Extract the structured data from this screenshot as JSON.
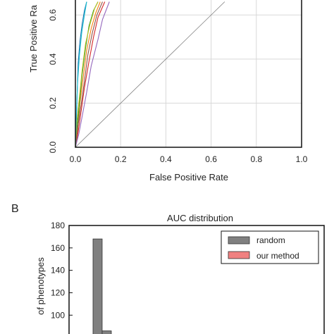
{
  "chart_data": [
    {
      "type": "line",
      "panel_label": "",
      "xlabel": "False Positive Rate",
      "ylabel": "True Positive Ra",
      "xlim": [
        0.0,
        1.0
      ],
      "ylim": [
        0.0,
        0.66
      ],
      "x_ticks": [
        "0.0",
        "0.2",
        "0.4",
        "0.6",
        "0.8",
        "1.0"
      ],
      "y_ticks": [
        "0.0",
        "0.2",
        "0.4",
        "0.6"
      ],
      "grid": true,
      "series": [
        {
          "color": "#1f77b4",
          "points": [
            [
              0,
              0
            ],
            [
              0.004,
              0.12
            ],
            [
              0.008,
              0.25
            ],
            [
              0.012,
              0.38
            ],
            [
              0.02,
              0.48
            ],
            [
              0.03,
              0.56
            ],
            [
              0.04,
              0.62
            ],
            [
              0.05,
              0.66
            ]
          ]
        },
        {
          "color": "#ff7f0e",
          "points": [
            [
              0,
              0
            ],
            [
              0.01,
              0.08
            ],
            [
              0.02,
              0.2
            ],
            [
              0.035,
              0.32
            ],
            [
              0.05,
              0.44
            ],
            [
              0.07,
              0.54
            ],
            [
              0.09,
              0.61
            ],
            [
              0.11,
              0.66
            ]
          ]
        },
        {
          "color": "#2ca02c",
          "points": [
            [
              0,
              0
            ],
            [
              0.008,
              0.1
            ],
            [
              0.02,
              0.22
            ],
            [
              0.03,
              0.33
            ],
            [
              0.045,
              0.45
            ],
            [
              0.06,
              0.55
            ],
            [
              0.08,
              0.62
            ],
            [
              0.1,
              0.66
            ]
          ]
        },
        {
          "color": "#d62728",
          "points": [
            [
              0,
              0
            ],
            [
              0.012,
              0.07
            ],
            [
              0.025,
              0.16
            ],
            [
              0.04,
              0.27
            ],
            [
              0.06,
              0.39
            ],
            [
              0.08,
              0.5
            ],
            [
              0.1,
              0.59
            ],
            [
              0.13,
              0.66
            ]
          ]
        },
        {
          "color": "#9467bd",
          "points": [
            [
              0,
              0
            ],
            [
              0.015,
              0.06
            ],
            [
              0.03,
              0.14
            ],
            [
              0.05,
              0.25
            ],
            [
              0.07,
              0.37
            ],
            [
              0.1,
              0.49
            ],
            [
              0.12,
              0.58
            ],
            [
              0.15,
              0.66
            ]
          ]
        },
        {
          "color": "#8c564b",
          "points": [
            [
              0,
              0
            ],
            [
              0.01,
              0.09
            ],
            [
              0.025,
              0.19
            ],
            [
              0.04,
              0.3
            ],
            [
              0.055,
              0.42
            ],
            [
              0.075,
              0.52
            ],
            [
              0.095,
              0.6
            ],
            [
              0.12,
              0.66
            ]
          ]
        },
        {
          "color": "#bcbd22",
          "points": [
            [
              0,
              0
            ],
            [
              0.006,
              0.11
            ],
            [
              0.018,
              0.23
            ],
            [
              0.03,
              0.35
            ],
            [
              0.045,
              0.47
            ],
            [
              0.065,
              0.56
            ],
            [
              0.085,
              0.63
            ],
            [
              0.1,
              0.66
            ]
          ]
        },
        {
          "color": "#17becf",
          "points": [
            [
              0,
              0
            ],
            [
              0.004,
              0.15
            ],
            [
              0.01,
              0.3
            ],
            [
              0.018,
              0.42
            ],
            [
              0.028,
              0.52
            ],
            [
              0.04,
              0.6
            ],
            [
              0.05,
              0.66
            ]
          ]
        },
        {
          "color": "#7f7f7f",
          "points": [
            [
              0,
              0
            ],
            [
              0.66,
              0.66
            ]
          ]
        }
      ]
    },
    {
      "type": "bar",
      "panel_label": "B",
      "title": "AUC distribution",
      "xlabel": "",
      "ylabel": "of phenotypes",
      "ylim": [
        70,
        180
      ],
      "y_ticks": [
        "80",
        "100",
        "120",
        "140",
        "160",
        "180"
      ],
      "legend": {
        "placement": "top-right",
        "entries": [
          {
            "label": "random",
            "color": "#808080"
          },
          {
            "label": "our method",
            "color": "#f08080"
          }
        ]
      },
      "bars": [
        {
          "series": "random",
          "value": 168
        },
        {
          "series": "random",
          "value": 86
        }
      ]
    }
  ]
}
